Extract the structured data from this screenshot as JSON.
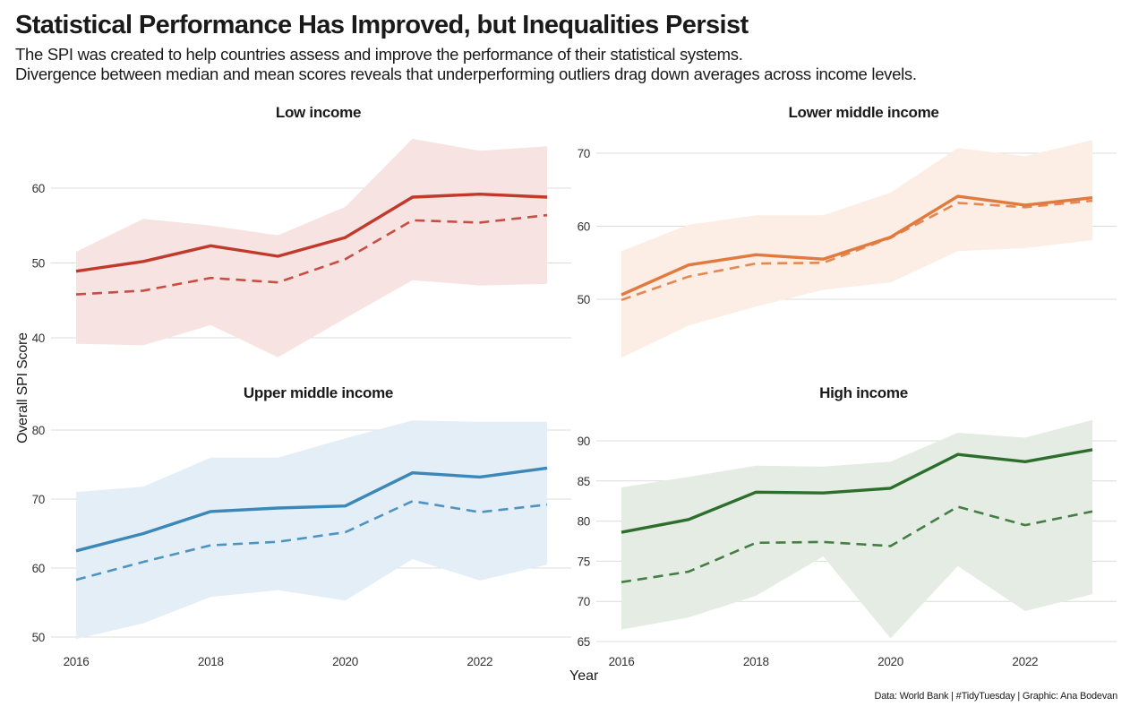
{
  "header": {
    "title": "Statistical Performance Has Improved, but Inequalities Persist",
    "subtitle_lines": [
      "The SPI was created to help countries assess and improve the performance of their statistical systems.",
      "Divergence between median and mean scores reveals that underperforming outliers drag down averages across income levels."
    ]
  },
  "caption": "Data: World Bank | #TidyTuesday | Graphic: Ana Bodevan",
  "chart_data": {
    "type": "line",
    "layout": "facet grid 2x2",
    "xlabel": "Year",
    "ylabel": "Overall SPI Score",
    "x": [
      2016,
      2017,
      2018,
      2019,
      2020,
      2021,
      2022,
      2023
    ],
    "x_ticks": [
      "2016",
      "2018",
      "2020",
      "2022"
    ],
    "x_tick_values": [
      2016,
      2018,
      2020,
      2022
    ],
    "legend": "none",
    "series_styles": {
      "median": "solid line",
      "mean": "dashed line",
      "range": "shaded ribbon"
    },
    "panels": [
      {
        "title": "Low income",
        "color": "#c0392b",
        "fill": "#f7e4e2",
        "ylim": [
          36,
          68
        ],
        "y_ticks": [
          40,
          50,
          60
        ],
        "series": [
          {
            "name": "median",
            "values": [
              48.9,
              50.2,
              52.3,
              50.9,
              53.4,
              58.8,
              59.2,
              58.8
            ]
          },
          {
            "name": "mean",
            "values": [
              45.8,
              46.3,
              48.0,
              47.4,
              50.5,
              55.7,
              55.4,
              56.4
            ]
          },
          {
            "name": "upper",
            "values": [
              51.5,
              55.9,
              55.0,
              53.7,
              57.5,
              66.6,
              65.0,
              65.6
            ]
          },
          {
            "name": "lower",
            "values": [
              39.2,
              39.0,
              41.7,
              37.4,
              42.6,
              47.7,
              47.0,
              47.2
            ]
          }
        ]
      },
      {
        "title": "Lower middle income",
        "color": "#e07a3f",
        "fill": "#fcede5",
        "ylim": [
          40.5,
          73.5
        ],
        "y_ticks": [
          50,
          60,
          70
        ],
        "series": [
          {
            "name": "median",
            "values": [
              50.6,
              54.7,
              56.1,
              55.5,
              58.5,
              64.1,
              62.9,
              63.9
            ]
          },
          {
            "name": "mean",
            "values": [
              49.9,
              53.1,
              54.9,
              55.0,
              58.4,
              63.2,
              62.6,
              63.5
            ]
          },
          {
            "name": "upper",
            "values": [
              56.6,
              60.2,
              61.5,
              61.5,
              64.6,
              70.7,
              69.6,
              71.8
            ]
          },
          {
            "name": "lower",
            "values": [
              42.0,
              46.4,
              49.0,
              51.3,
              52.3,
              56.6,
              57.0,
              58.1
            ]
          }
        ]
      },
      {
        "title": "Upper middle income",
        "color": "#3a87b8",
        "fill": "#e4eef7",
        "ylim": [
          49,
          82.5
        ],
        "y_ticks": [
          50,
          60,
          70,
          80
        ],
        "series": [
          {
            "name": "median",
            "values": [
              62.5,
              65.0,
              68.2,
              68.7,
              69.0,
              73.8,
              73.2,
              74.5
            ]
          },
          {
            "name": "mean",
            "values": [
              58.3,
              60.9,
              63.3,
              63.8,
              65.2,
              69.7,
              68.1,
              69.2
            ]
          },
          {
            "name": "upper",
            "values": [
              71.0,
              71.8,
              76.0,
              76.0,
              78.8,
              81.4,
              81.2,
              81.2
            ]
          },
          {
            "name": "lower",
            "values": [
              49.7,
              52.0,
              55.8,
              56.8,
              55.3,
              61.3,
              58.2,
              60.5
            ]
          }
        ]
      },
      {
        "title": "High income",
        "color": "#2d6e2d",
        "fill": "#e4ece3",
        "ylim": [
          64.8,
          93.5
        ],
        "y_ticks": [
          65,
          70,
          75,
          80,
          85,
          90
        ],
        "series": [
          {
            "name": "median",
            "values": [
              78.6,
              80.2,
              83.6,
              83.5,
              84.1,
              88.3,
              87.4,
              88.9
            ]
          },
          {
            "name": "mean",
            "values": [
              72.4,
              73.7,
              77.3,
              77.4,
              76.9,
              81.8,
              79.5,
              81.2
            ]
          },
          {
            "name": "upper",
            "values": [
              84.2,
              85.5,
              86.9,
              86.8,
              87.4,
              91.0,
              90.4,
              92.6
            ]
          },
          {
            "name": "lower",
            "values": [
              66.5,
              68.0,
              70.7,
              75.6,
              65.4,
              74.4,
              68.8,
              70.9
            ]
          }
        ]
      }
    ]
  }
}
